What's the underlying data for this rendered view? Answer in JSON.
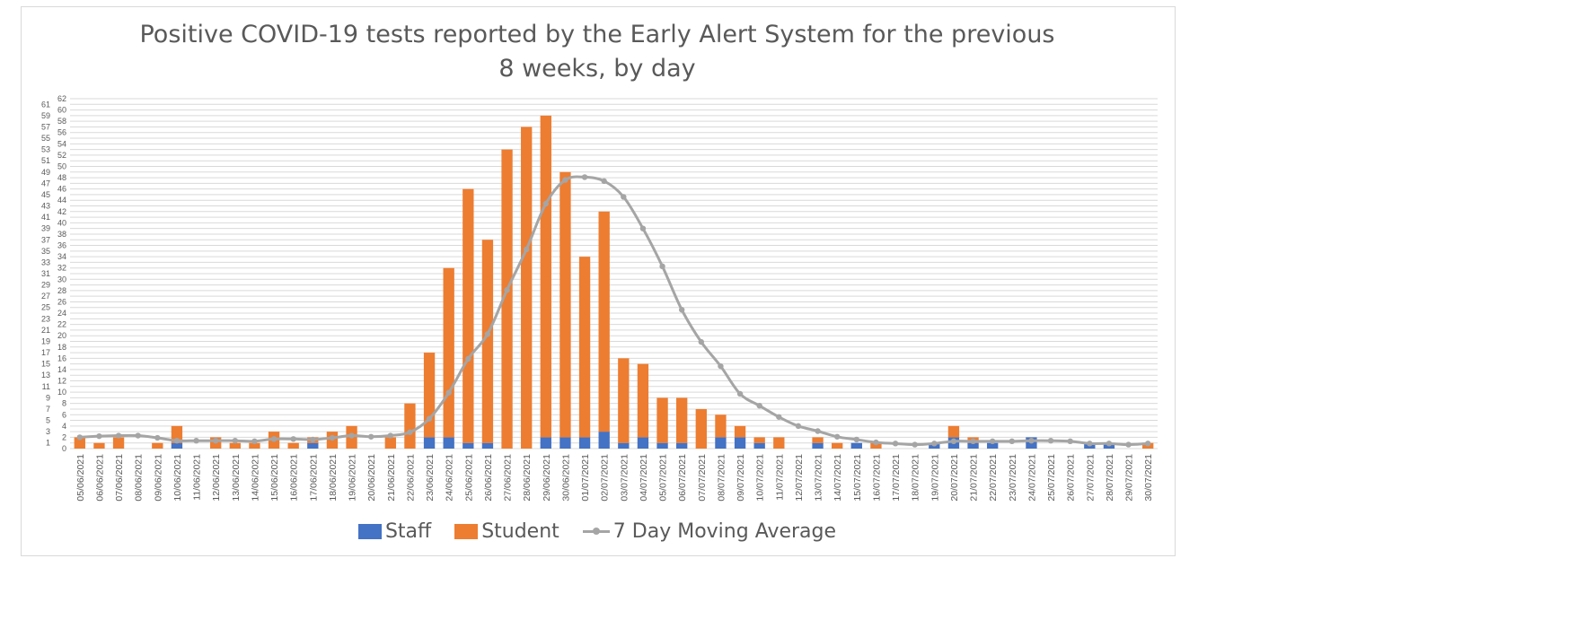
{
  "chart_data": {
    "type": "bar",
    "stacked": true,
    "title": "Positive COVID-19 tests reported by the Early Alert System for the previous 8 weeks, by day",
    "title_lines": [
      "Positive COVID-19 tests reported by the Early Alert System for the previous",
      "8 weeks, by day"
    ],
    "xlabel": "",
    "ylabel": "",
    "ylim": [
      0,
      62
    ],
    "ytick_step": 1,
    "grid": true,
    "legend_position": "bottom",
    "categories": [
      "05/06/2021",
      "06/06/2021",
      "07/06/2021",
      "08/06/2021",
      "09/06/2021",
      "10/06/2021",
      "11/06/2021",
      "12/06/2021",
      "13/06/2021",
      "14/06/2021",
      "15/06/2021",
      "16/06/2021",
      "17/06/2021",
      "18/06/2021",
      "19/06/2021",
      "20/06/2021",
      "21/06/2021",
      "22/06/2021",
      "23/06/2021",
      "24/06/2021",
      "25/06/2021",
      "26/06/2021",
      "27/06/2021",
      "28/06/2021",
      "29/06/2021",
      "30/06/2021",
      "01/07/2021",
      "02/07/2021",
      "03/07/2021",
      "04/07/2021",
      "05/07/2021",
      "06/07/2021",
      "07/07/2021",
      "08/07/2021",
      "09/07/2021",
      "10/07/2021",
      "11/07/2021",
      "12/07/2021",
      "13/07/2021",
      "14/07/2021",
      "15/07/2021",
      "16/07/2021",
      "17/07/2021",
      "18/07/2021",
      "19/07/2021",
      "20/07/2021",
      "21/07/2021",
      "22/07/2021",
      "23/07/2021",
      "24/07/2021",
      "25/07/2021",
      "26/07/2021",
      "27/07/2021",
      "28/07/2021",
      "29/07/2021",
      "30/07/2021"
    ],
    "series": [
      {
        "name": "Staff",
        "type": "bar",
        "color": "#4472C4",
        "values": [
          0,
          0,
          0,
          0,
          0,
          1,
          0,
          0,
          0,
          0,
          0,
          0,
          1,
          0,
          0,
          0,
          0,
          0,
          2,
          2,
          1,
          1,
          0,
          0,
          2,
          2,
          2,
          3,
          1,
          2,
          1,
          1,
          0,
          2,
          2,
          1,
          0,
          0,
          1,
          0,
          1,
          0,
          0,
          0,
          1,
          2,
          1,
          1,
          0,
          2,
          0,
          0,
          1,
          1,
          0,
          0
        ]
      },
      {
        "name": "Student",
        "type": "bar",
        "color": "#ED7D31",
        "values": [
          2,
          1,
          2,
          0,
          1,
          3,
          0,
          2,
          1,
          1,
          3,
          1,
          1,
          3,
          4,
          0,
          2,
          8,
          15,
          30,
          45,
          36,
          53,
          57,
          57,
          47,
          32,
          39,
          15,
          13,
          8,
          8,
          7,
          4,
          2,
          1,
          2,
          0,
          1,
          1,
          0,
          1,
          0,
          0,
          0,
          2,
          1,
          0,
          0,
          0,
          0,
          0,
          0,
          0,
          0,
          1
        ]
      },
      {
        "name": "7 Day Moving Average",
        "type": "line",
        "color": "#A5A5A5",
        "values": [
          2.0,
          2.2,
          2.3,
          2.3,
          1.9,
          1.4,
          1.4,
          1.4,
          1.4,
          1.3,
          1.7,
          1.7,
          1.6,
          1.9,
          2.3,
          2.1,
          2.3,
          2.9,
          5.3,
          9.9,
          15.9,
          20.3,
          28.1,
          35.3,
          43.4,
          47.6,
          48.1,
          47.4,
          44.6,
          39.0,
          32.3,
          24.6,
          18.9,
          14.6,
          9.7,
          7.6,
          5.6,
          4.0,
          3.1,
          2.1,
          1.6,
          1.1,
          0.9,
          0.7,
          0.9,
          1.3,
          1.3,
          1.3,
          1.3,
          1.4,
          1.4,
          1.3,
          0.9,
          0.9,
          0.7,
          0.9
        ]
      }
    ]
  }
}
